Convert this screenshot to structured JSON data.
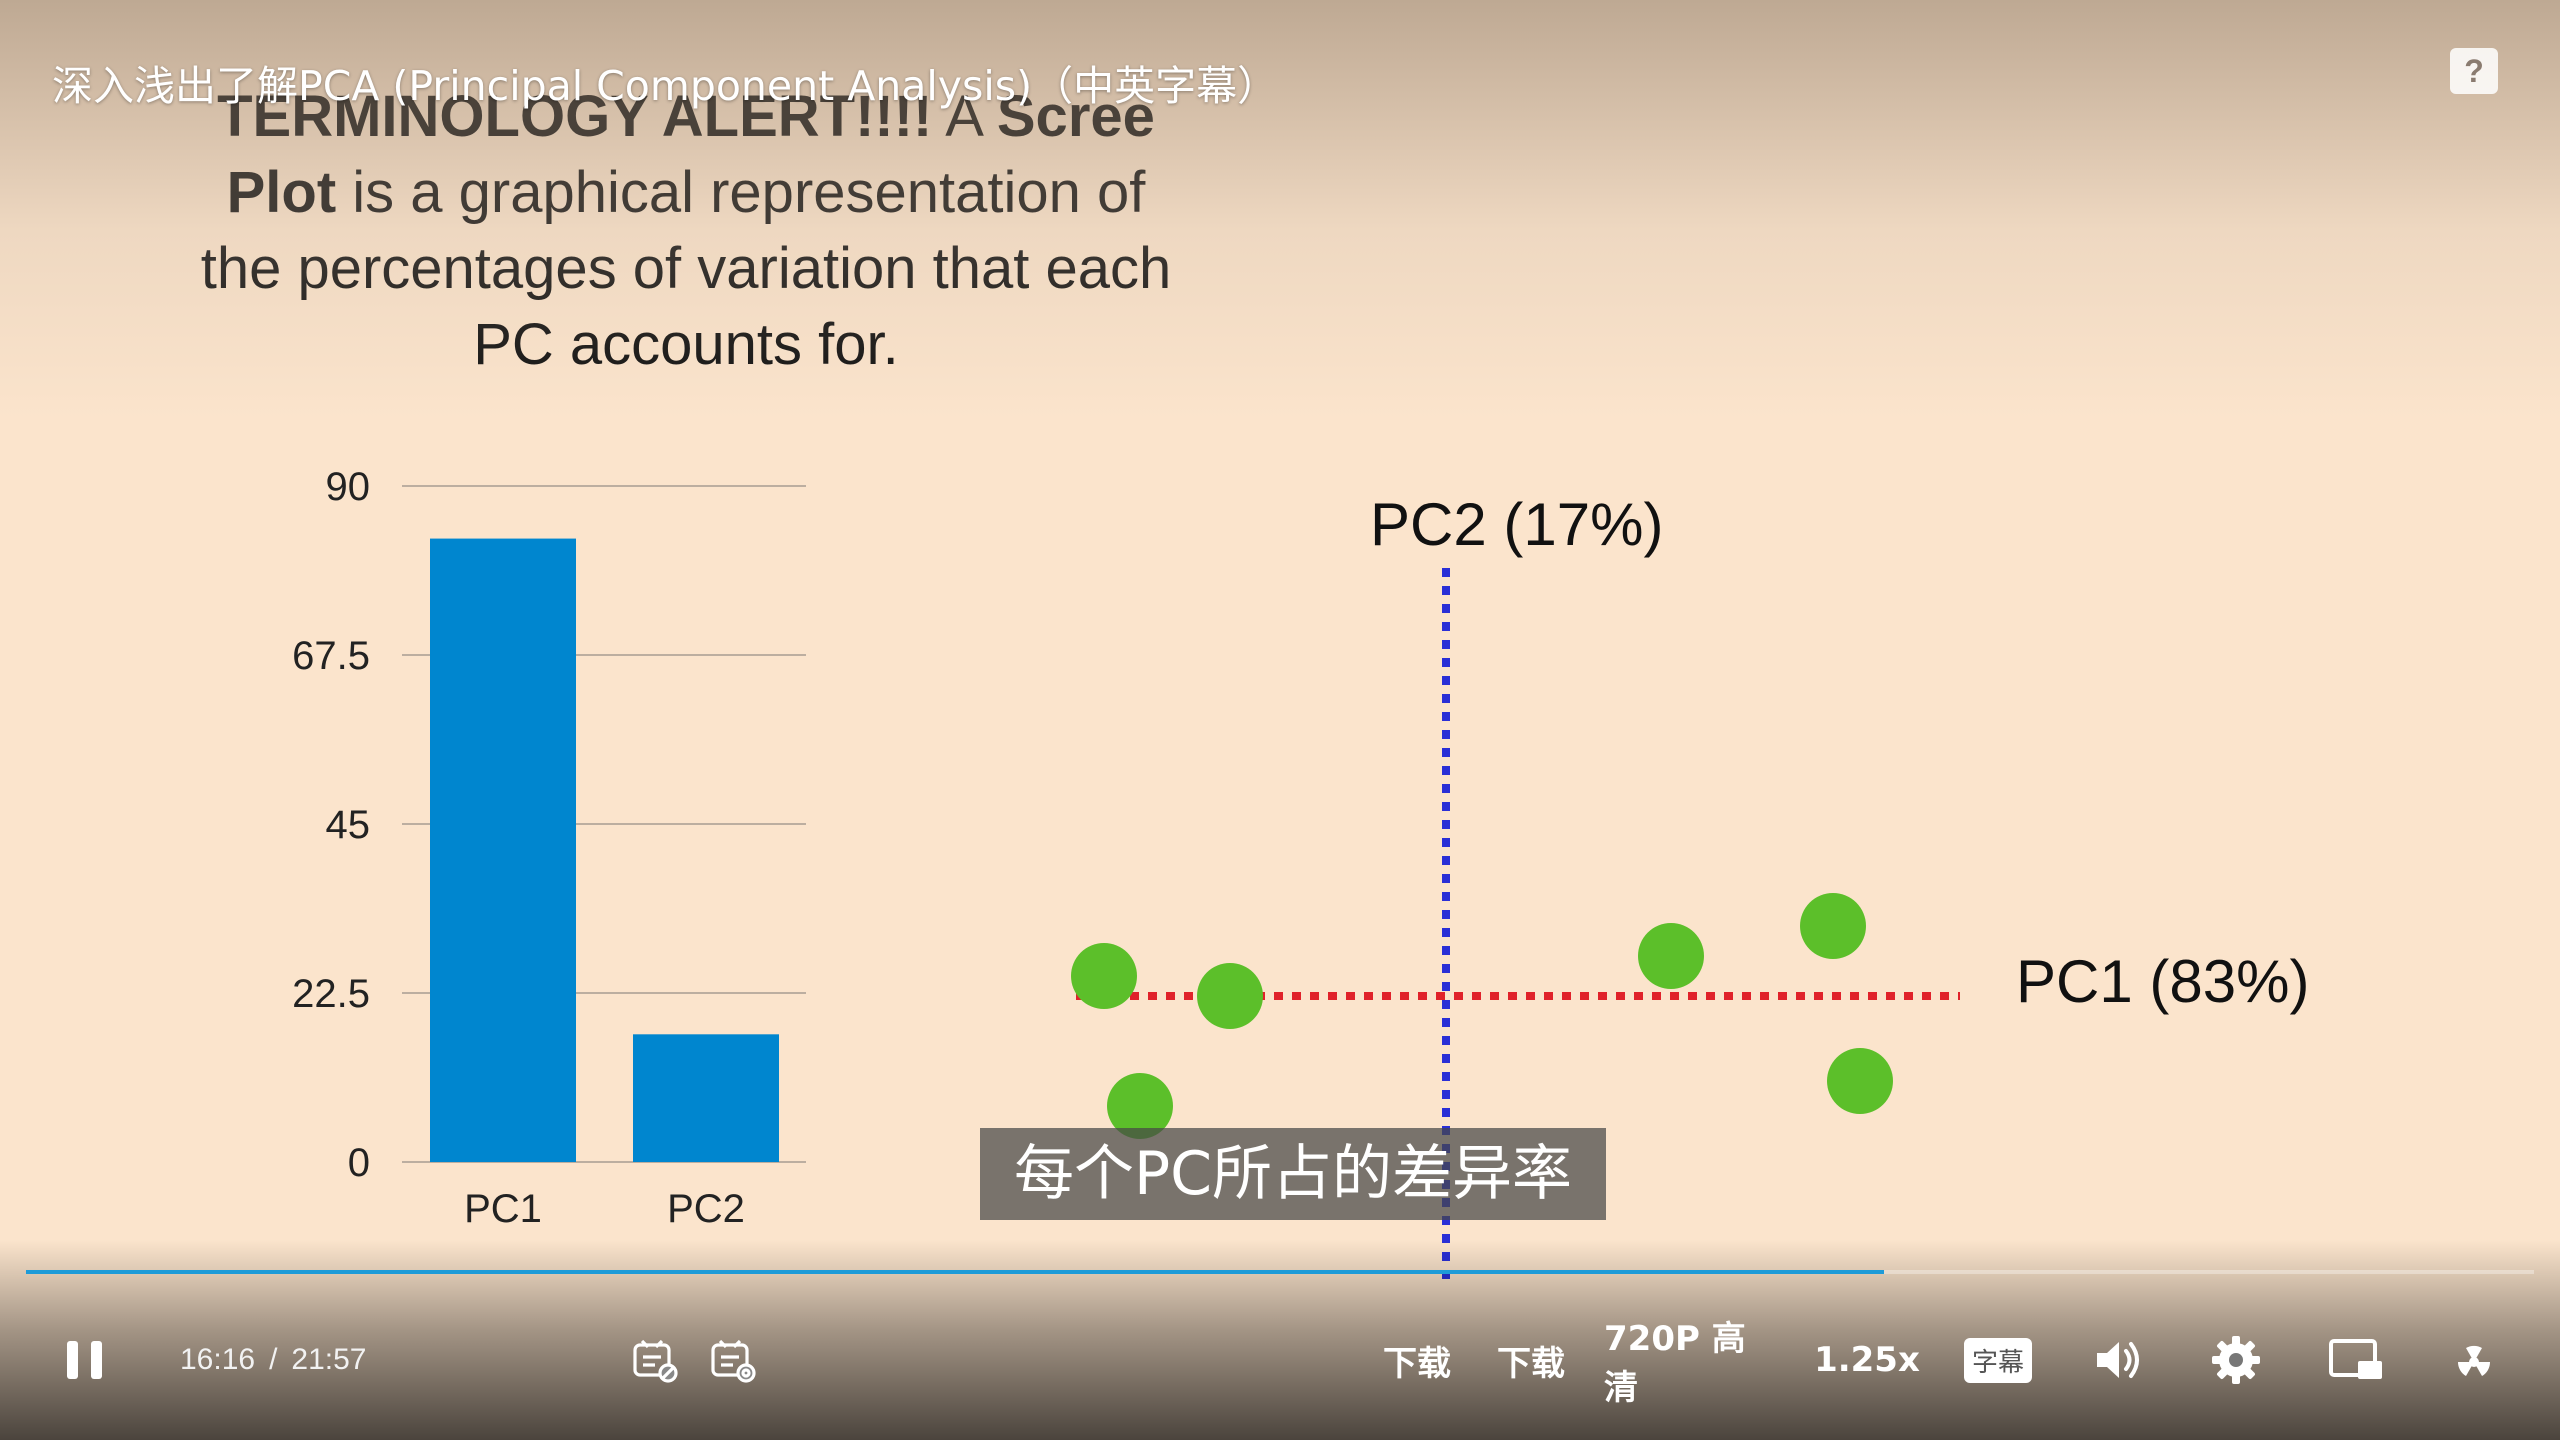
{
  "video": {
    "title": "深入浅出了解PCA (Principal Component Analysis)（中英字幕）",
    "help_label": "?",
    "subtitle": "每个PC所占的差异率"
  },
  "slide": {
    "text_lines": [
      {
        "bold": "TERMINOLOGY ALERT!!!!",
        "normal": " A ",
        "bold2": "Scree"
      },
      {
        "bold": "Plot",
        "normal": " is a graphical representation of"
      },
      {
        "normal": "the percentages of variation that each"
      },
      {
        "normal": "PC accounts for."
      }
    ]
  },
  "chart_data": [
    {
      "type": "bar",
      "categories": [
        "PC1",
        "PC2"
      ],
      "values": [
        83,
        17
      ],
      "yticks": [
        "0",
        "22.5",
        "45",
        "67.5",
        "90"
      ],
      "ylim": [
        0,
        90
      ],
      "grid": true,
      "color": "#0086cf"
    },
    {
      "type": "scatter",
      "x_axis_label": "PC1 (83%)",
      "y_axis_label": "PC2 (17%)",
      "x_line_color": "#e0222a",
      "y_line_color": "#2a2fd6",
      "point_color": "#5cbf2a",
      "points": [
        {
          "x": -3.8,
          "y": 0.4
        },
        {
          "x": -2.4,
          "y": 0.0
        },
        {
          "x": -3.4,
          "y": -2.2
        },
        {
          "x": 2.5,
          "y": 0.8
        },
        {
          "x": 4.3,
          "y": 1.4
        },
        {
          "x": 4.6,
          "y": -1.7
        }
      ]
    }
  ],
  "player": {
    "progress": 0.741,
    "time_current": "16:16",
    "time_separator": "/",
    "time_total": "21:57",
    "buttons": {
      "download1": "下载",
      "download2": "下载",
      "quality": "720P 高清",
      "speed": "1.25x",
      "subtitles": "字幕"
    },
    "icons": [
      "pause-icon",
      "danmaku-off-icon",
      "danmaku-settings-icon",
      "volume-icon",
      "settings-icon",
      "pip-icon",
      "fullscreen-icon"
    ]
  }
}
